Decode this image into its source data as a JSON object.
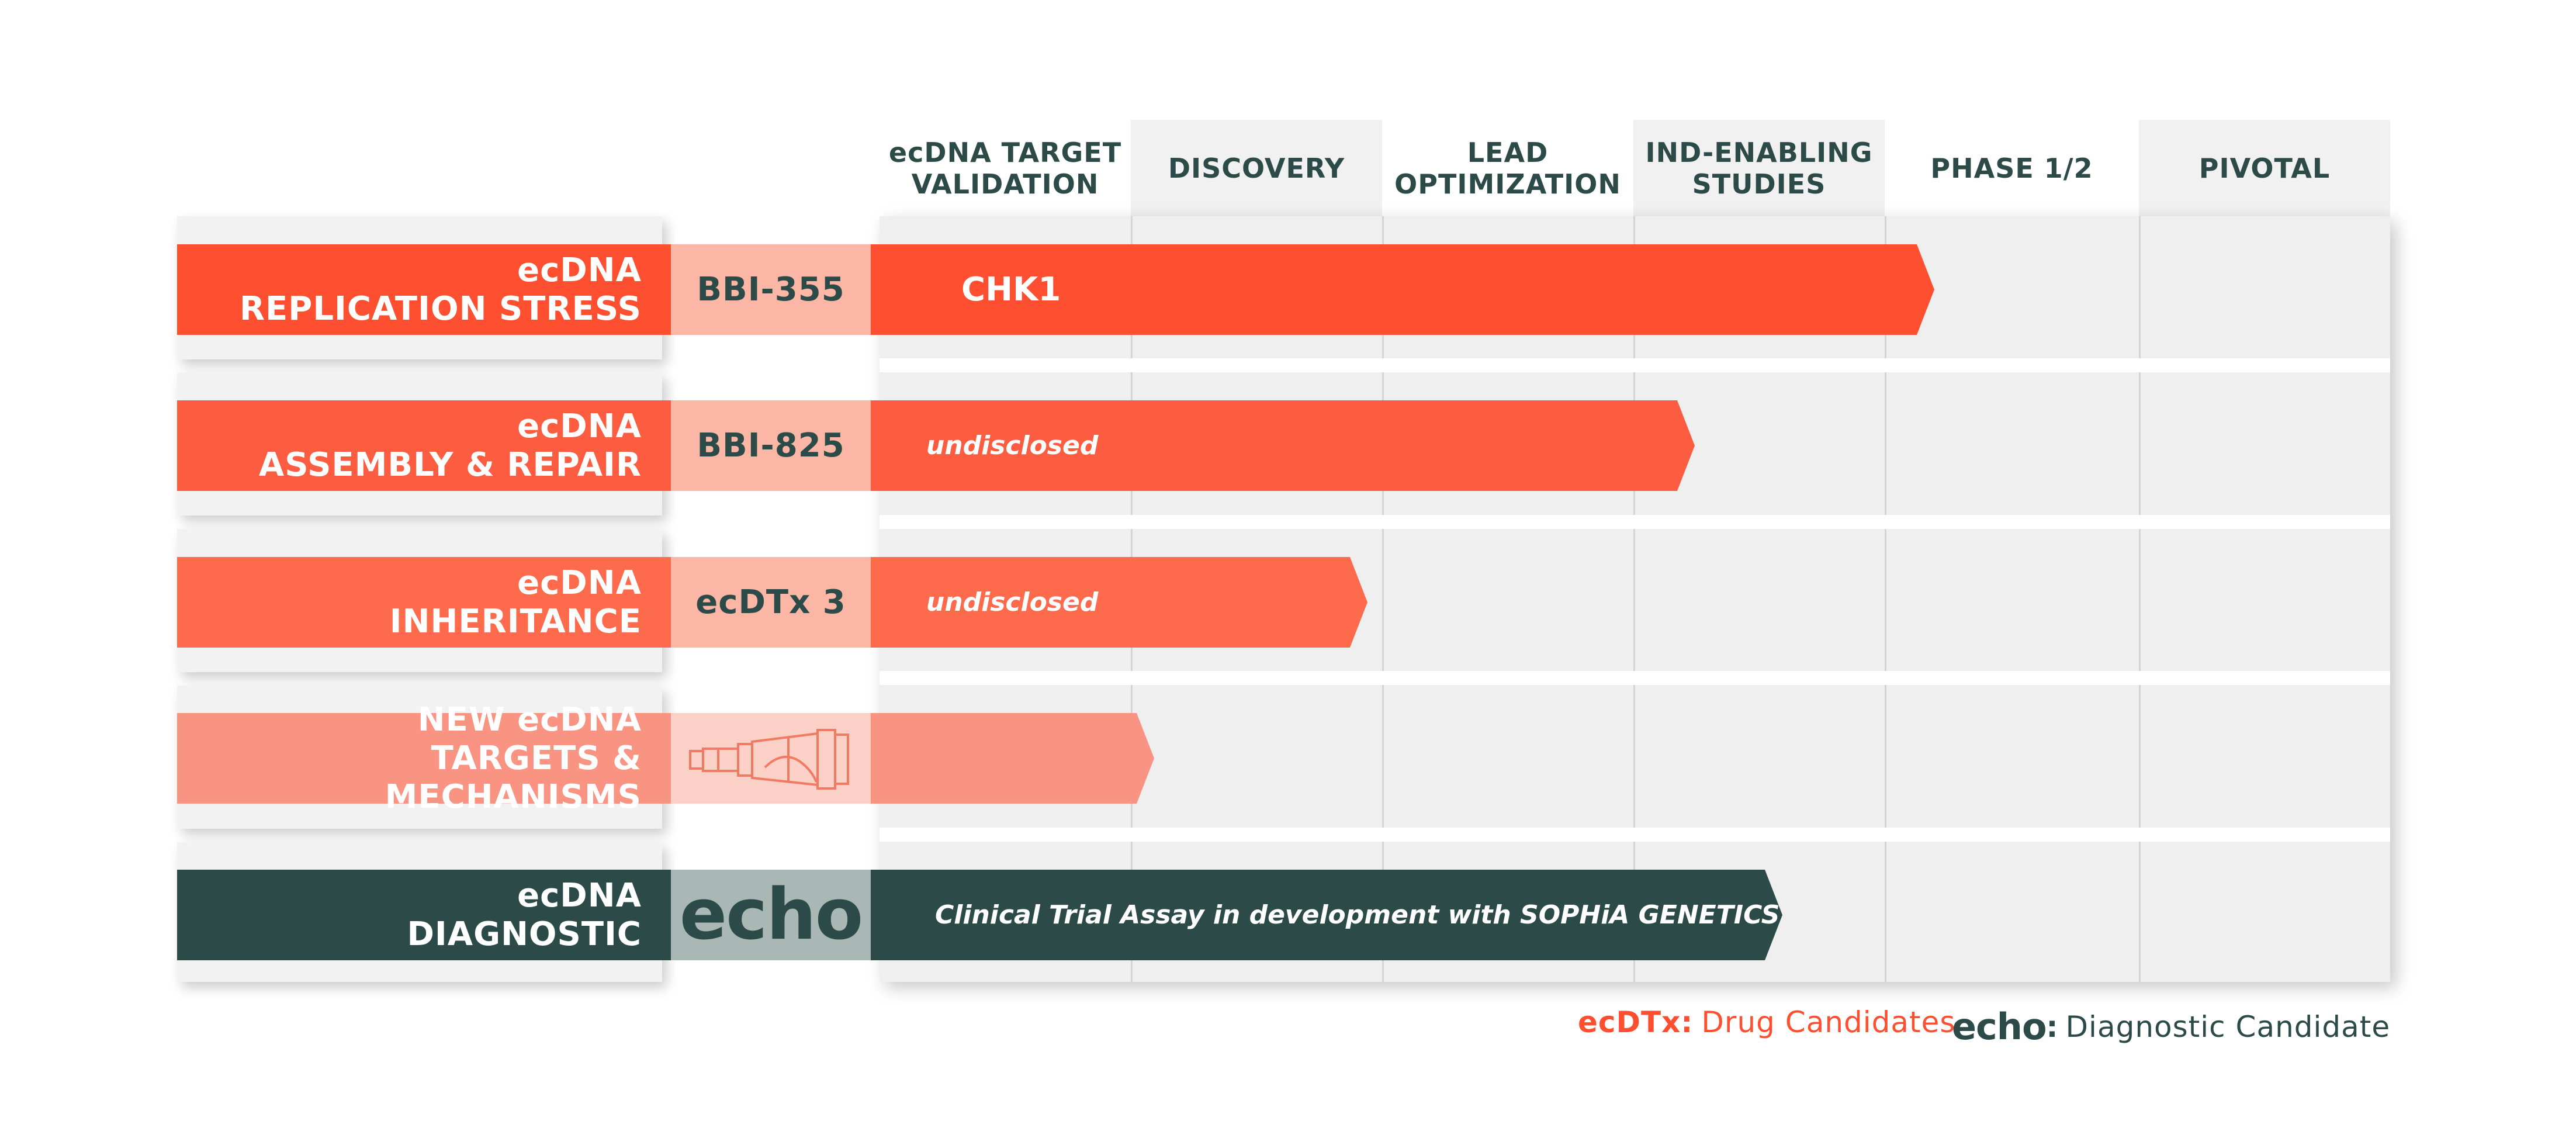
{
  "stages": [
    "ecDNA TARGET\nVALIDATION",
    "DISCOVERY",
    "LEAD\nOPTIMIZATION",
    "IND-ENABLING\nSTUDIES",
    "PHASE 1/2",
    "PIVOTAL"
  ],
  "programs": [
    {
      "category": "ecDNA\nREPLICATION STRESS",
      "candidate": "BBI-355",
      "bar_text": "CHK1",
      "stage_reached": "IND-ENABLING STUDIES",
      "progress_stages": 4.0
    },
    {
      "category": "ecDNA\nASSEMBLY & REPAIR",
      "candidate": "BBI-825",
      "bar_text": "undisclosed",
      "stage_reached": "LEAD OPTIMIZATION",
      "progress_stages": 3.0
    },
    {
      "category": "ecDNA\nINHERITANCE",
      "candidate": "ecDTx 3",
      "bar_text": "undisclosed",
      "stage_reached": "DISCOVERY",
      "progress_stages": 1.75
    },
    {
      "category": "NEW ecDNA\nTARGETS & MECHANISMS",
      "candidate_icon": "telescope-icon",
      "bar_text": "",
      "stage_reached": "ecDNA TARGET VALIDATION",
      "progress_stages": 1.0
    },
    {
      "category": "ecDNA\nDIAGNOSTIC",
      "candidate_logo": "echo",
      "bar_text": "Clinical Trial Assay in development with SOPHiA GENETICS",
      "stage_reached": "LEAD OPTIMIZATION",
      "progress_stages": 3.5
    }
  ],
  "legend": {
    "drug_key": "ecDTx:",
    "drug_label": "Drug Candidates",
    "diag_key": ":",
    "diag_label": "Diagnostic Candidate"
  },
  "logo_text": "echo",
  "colors": {
    "orange": "#fe5031",
    "orange_2": "#fc5c3f",
    "orange_3": "#fd6a4c",
    "orange_light": "#f99482",
    "orange_box": "#fcb6a6",
    "orange_box_light": "#fbd0c6",
    "teal": "#2c4a47",
    "teal_box": "#a9b8b5",
    "grid": "#efefef"
  }
}
